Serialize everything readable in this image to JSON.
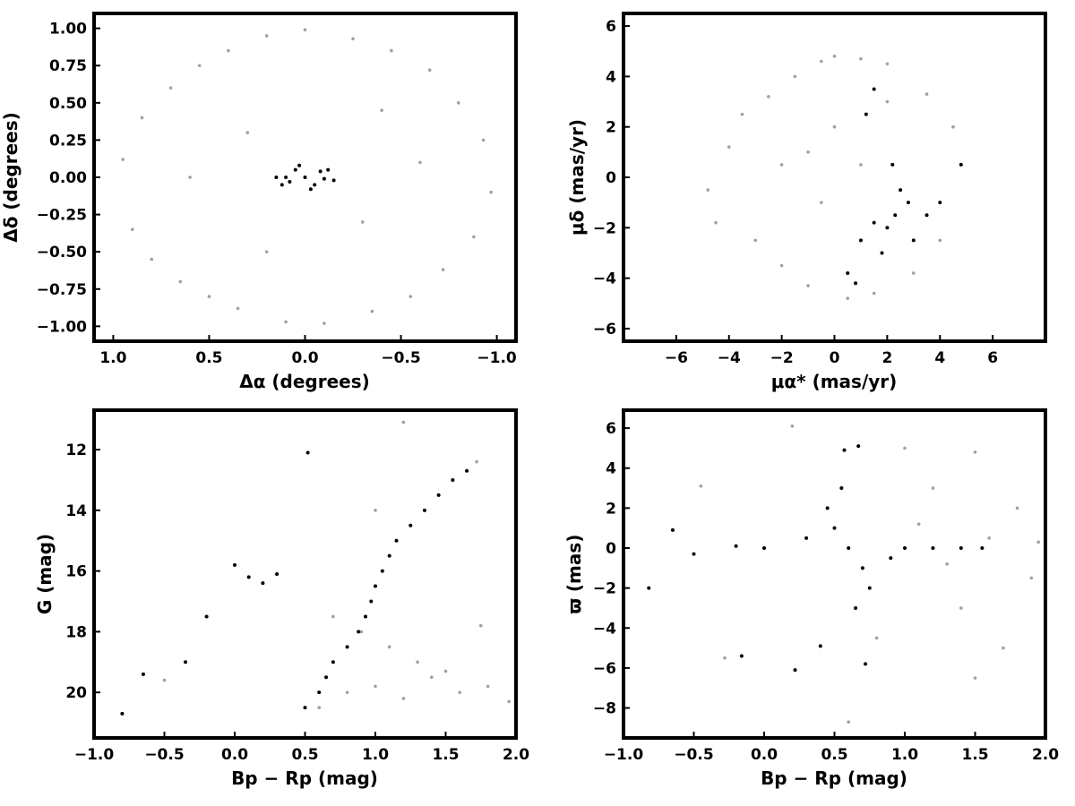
{
  "colors": {
    "field": "#a0a0a0",
    "members": "#000000",
    "axes": "#000000",
    "background": "#ffffff"
  },
  "chart_data": [
    {
      "type": "scatter",
      "panel": "top-left",
      "xlabel": "Δα (degrees)",
      "ylabel": "Δδ (degrees)",
      "xlim": [
        1.1,
        -1.1
      ],
      "ylim": [
        -1.1,
        1.1
      ],
      "x_inverted": true,
      "xticks": [
        "1.0",
        "0.5",
        "0.0",
        "−0.5",
        "−1.0"
      ],
      "xtick_values": [
        1.0,
        0.5,
        0.0,
        -0.5,
        -1.0
      ],
      "yticks": [
        "−1.00",
        "−0.75",
        "−0.50",
        "−0.25",
        "0.00",
        "0.25",
        "0.50",
        "0.75",
        "1.00"
      ],
      "ytick_values": [
        -1.0,
        -0.75,
        -0.5,
        -0.25,
        0.0,
        0.25,
        0.5,
        0.75,
        1.0
      ],
      "grid": false,
      "series": [
        {
          "values": [
            [
              0.95,
              0.12
            ],
            [
              0.9,
              -0.35
            ],
            [
              0.85,
              0.4
            ],
            [
              0.8,
              -0.55
            ],
            [
              0.7,
              0.6
            ],
            [
              0.65,
              -0.7
            ],
            [
              0.55,
              0.75
            ],
            [
              0.5,
              -0.8
            ],
            [
              0.4,
              0.85
            ],
            [
              0.35,
              -0.88
            ],
            [
              0.2,
              0.95
            ],
            [
              0.1,
              -0.97
            ],
            [
              0.0,
              0.99
            ],
            [
              -0.1,
              -0.98
            ],
            [
              -0.25,
              0.93
            ],
            [
              -0.35,
              -0.9
            ],
            [
              -0.45,
              0.85
            ],
            [
              -0.55,
              -0.8
            ],
            [
              -0.65,
              0.72
            ],
            [
              -0.72,
              -0.62
            ],
            [
              -0.8,
              0.5
            ],
            [
              -0.88,
              -0.4
            ],
            [
              -0.93,
              0.25
            ],
            [
              -0.97,
              -0.1
            ],
            [
              0.3,
              0.3
            ],
            [
              -0.3,
              -0.3
            ],
            [
              0.6,
              0.0
            ],
            [
              -0.6,
              0.1
            ],
            [
              0.2,
              -0.5
            ],
            [
              -0.4,
              0.45
            ]
          ]
        },
        {
          "values": [
            [
              0.0,
              0.0
            ],
            [
              0.05,
              0.05
            ],
            [
              -0.05,
              -0.05
            ],
            [
              0.08,
              -0.03
            ],
            [
              -0.08,
              0.04
            ],
            [
              0.1,
              0.0
            ],
            [
              -0.1,
              -0.01
            ],
            [
              0.03,
              0.08
            ],
            [
              -0.03,
              -0.08
            ],
            [
              0.12,
              -0.05
            ],
            [
              -0.12,
              0.05
            ],
            [
              0.15,
              0.0
            ],
            [
              -0.15,
              -0.02
            ]
          ]
        }
      ]
    },
    {
      "type": "scatter",
      "panel": "top-right",
      "xlabel": "μα*  (mas/yr)",
      "ylabel": "μδ (mas/yr)",
      "xlim": [
        -8,
        8
      ],
      "ylim": [
        -6.5,
        6.5
      ],
      "xticks": [
        "−6",
        "−4",
        "−2",
        "0",
        "2",
        "4",
        "6"
      ],
      "xtick_values": [
        -6,
        -4,
        -2,
        0,
        2,
        4,
        6
      ],
      "yticks": [
        "−6",
        "−4",
        "−2",
        "0",
        "2",
        "4",
        "6"
      ],
      "ytick_values": [
        -6,
        -4,
        -2,
        0,
        2,
        4,
        6
      ],
      "grid": false,
      "series": [
        {
          "values": [
            [
              -4.8,
              -0.5
            ],
            [
              -4.5,
              -1.8
            ],
            [
              -4.0,
              1.2
            ],
            [
              -3.5,
              2.5
            ],
            [
              -3.0,
              -2.5
            ],
            [
              -2.5,
              3.2
            ],
            [
              -2.0,
              -3.5
            ],
            [
              -1.5,
              4.0
            ],
            [
              -1.0,
              -4.3
            ],
            [
              -0.5,
              4.6
            ],
            [
              0.0,
              4.8
            ],
            [
              0.5,
              -4.8
            ],
            [
              1.0,
              4.7
            ],
            [
              1.5,
              -4.6
            ],
            [
              2.0,
              4.5
            ],
            [
              3.0,
              -3.8
            ],
            [
              3.5,
              3.3
            ],
            [
              4.0,
              -2.5
            ],
            [
              4.5,
              2.0
            ],
            [
              4.8,
              0.5
            ],
            [
              -1.0,
              1.0
            ],
            [
              0.0,
              2.0
            ],
            [
              -0.5,
              -1.0
            ],
            [
              1.0,
              0.5
            ],
            [
              2.0,
              3.0
            ],
            [
              -2.0,
              0.5
            ]
          ]
        },
        {
          "values": [
            [
              2.3,
              -1.5
            ],
            [
              2.0,
              -2.0
            ],
            [
              2.8,
              -1.0
            ],
            [
              1.5,
              -1.8
            ],
            [
              3.0,
              -2.5
            ],
            [
              2.5,
              -0.5
            ],
            [
              1.8,
              -3.0
            ],
            [
              3.5,
              -1.5
            ],
            [
              1.0,
              -2.5
            ],
            [
              2.2,
              0.5
            ],
            [
              0.5,
              -3.8
            ],
            [
              1.2,
              2.5
            ],
            [
              1.5,
              3.5
            ],
            [
              0.8,
              -4.2
            ],
            [
              4.0,
              -1.0
            ],
            [
              4.8,
              0.5
            ]
          ]
        }
      ]
    },
    {
      "type": "scatter",
      "panel": "bottom-left",
      "xlabel": "Bp − Rp (mag)",
      "ylabel": "G (mag)",
      "xlim": [
        -1.0,
        2.0
      ],
      "ylim": [
        21.5,
        10.7
      ],
      "y_inverted": true,
      "xticks": [
        "−1.0",
        "−0.5",
        "0.0",
        "0.5",
        "1.0",
        "1.5",
        "2.0"
      ],
      "xtick_values": [
        -1.0,
        -0.5,
        0.0,
        0.5,
        1.0,
        1.5,
        2.0
      ],
      "yticks": [
        "12",
        "14",
        "16",
        "18",
        "20"
      ],
      "ytick_values": [
        12,
        14,
        16,
        18,
        20
      ],
      "grid": false,
      "series": [
        {
          "values": [
            [
              0.6,
              20.5
            ],
            [
              0.8,
              20.0
            ],
            [
              1.0,
              19.8
            ],
            [
              1.2,
              20.2
            ],
            [
              1.4,
              19.5
            ],
            [
              1.6,
              20.0
            ],
            [
              1.8,
              19.8
            ],
            [
              1.95,
              20.3
            ],
            [
              0.9,
              18.0
            ],
            [
              1.1,
              18.5
            ],
            [
              1.3,
              19.0
            ],
            [
              1.5,
              19.3
            ],
            [
              0.7,
              17.5
            ],
            [
              1.0,
              14.0
            ],
            [
              1.2,
              11.1
            ],
            [
              1.72,
              12.4
            ],
            [
              -0.5,
              19.6
            ],
            [
              1.75,
              17.8
            ]
          ]
        },
        {
          "values": [
            [
              0.5,
              20.5
            ],
            [
              0.6,
              20.0
            ],
            [
              0.65,
              19.5
            ],
            [
              0.7,
              19.0
            ],
            [
              0.8,
              18.5
            ],
            [
              0.88,
              18.0
            ],
            [
              0.93,
              17.5
            ],
            [
              0.97,
              17.0
            ],
            [
              1.0,
              16.5
            ],
            [
              1.05,
              16.0
            ],
            [
              1.1,
              15.5
            ],
            [
              1.15,
              15.0
            ],
            [
              1.25,
              14.5
            ],
            [
              1.35,
              14.0
            ],
            [
              1.45,
              13.5
            ],
            [
              1.55,
              13.0
            ],
            [
              1.65,
              12.7
            ],
            [
              0.52,
              12.1
            ],
            [
              0.1,
              16.2
            ],
            [
              0.3,
              16.1
            ],
            [
              0.2,
              16.4
            ],
            [
              -0.2,
              17.5
            ],
            [
              -0.35,
              19.0
            ],
            [
              -0.8,
              20.7
            ],
            [
              -0.65,
              19.4
            ],
            [
              0.0,
              15.8
            ]
          ]
        }
      ]
    },
    {
      "type": "scatter",
      "panel": "bottom-right",
      "xlabel": "Bp − Rp (mag)",
      "ylabel": "ϖ (mas)",
      "xlim": [
        -1.0,
        2.0
      ],
      "ylim": [
        -9.5,
        6.9
      ],
      "xticks": [
        "−1.0",
        "−0.5",
        "0.0",
        "0.5",
        "1.0",
        "1.5",
        "2.0"
      ],
      "xtick_values": [
        -1.0,
        -0.5,
        0.0,
        0.5,
        1.0,
        1.5,
        2.0
      ],
      "yticks": [
        "−8",
        "−6",
        "−4",
        "−2",
        "0",
        "2",
        "4",
        "6"
      ],
      "ytick_values": [
        -8,
        -6,
        -4,
        -2,
        0,
        2,
        4,
        6
      ],
      "grid": false,
      "series": [
        {
          "values": [
            [
              0.2,
              6.1
            ],
            [
              1.0,
              5.0
            ],
            [
              1.5,
              4.8
            ],
            [
              0.6,
              -8.7
            ],
            [
              1.5,
              -6.5
            ],
            [
              1.7,
              -5.0
            ],
            [
              1.2,
              3.0
            ],
            [
              1.4,
              -3.0
            ],
            [
              1.8,
              2.0
            ],
            [
              1.9,
              -1.5
            ],
            [
              1.1,
              1.2
            ],
            [
              1.3,
              -0.8
            ],
            [
              1.6,
              0.5
            ],
            [
              1.95,
              0.3
            ],
            [
              0.8,
              -4.5
            ],
            [
              -0.45,
              3.1
            ],
            [
              -0.28,
              -5.5
            ]
          ]
        },
        {
          "values": [
            [
              0.6,
              0.0
            ],
            [
              0.5,
              1.0
            ],
            [
              0.7,
              -1.0
            ],
            [
              0.45,
              2.0
            ],
            [
              0.75,
              -2.0
            ],
            [
              0.55,
              3.0
            ],
            [
              0.65,
              -3.0
            ],
            [
              0.3,
              0.5
            ],
            [
              0.9,
              -0.5
            ],
            [
              1.0,
              0.0
            ],
            [
              1.2,
              0.0
            ],
            [
              1.4,
              0.0
            ],
            [
              1.55,
              0.0
            ],
            [
              0.0,
              0.0
            ],
            [
              -0.2,
              0.1
            ],
            [
              -0.5,
              -0.3
            ],
            [
              -0.82,
              -2.0
            ],
            [
              -0.65,
              0.9
            ],
            [
              0.57,
              4.9
            ],
            [
              0.67,
              5.1
            ],
            [
              0.22,
              -6.1
            ],
            [
              0.72,
              -5.8
            ],
            [
              -0.16,
              -5.4
            ],
            [
              0.4,
              -4.9
            ]
          ]
        }
      ]
    }
  ]
}
